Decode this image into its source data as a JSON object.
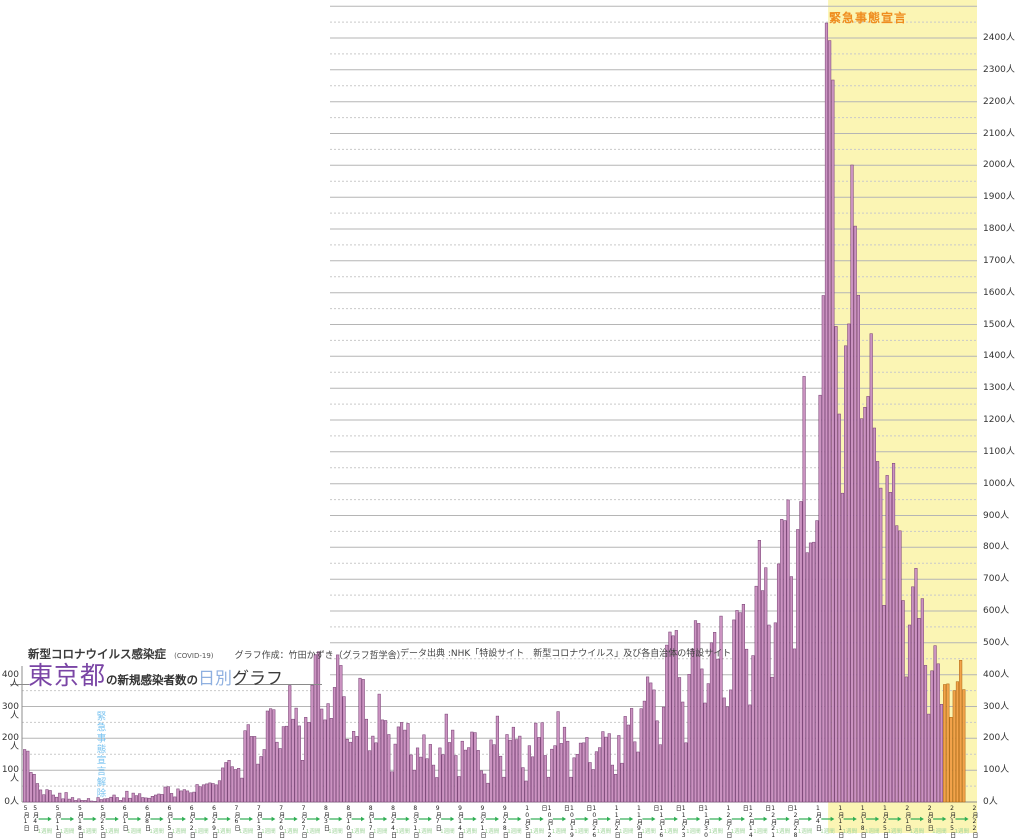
{
  "header": {
    "subtitle": "新型コロナウイルス感染症",
    "subtitle_suffix": "(COVID-19)",
    "credit": "グラフ作成：竹田かずき（グラフ哲学舎）",
    "title_main": "東京都",
    "title_mid": "の新規感染者数の",
    "title_highlight": "日別",
    "title_tail": "グラフ",
    "source": "データ出典 :NHK「特設サイト　新型コロナウイルス」及び各自治体の特設サイト"
  },
  "annotations": {
    "emergency_start": "緊急事態宣言",
    "emergency_end": "緊急事態宣言解除",
    "week_arrow": "1週間"
  },
  "colors": {
    "bar_fill": "#cb93c1",
    "bar_stroke": "#7b4477",
    "bar_recent_fill": "#f2a34b",
    "bar_recent_stroke": "#b06a15",
    "emergency_bg": "#fbf5b4",
    "emergency_text": "#ef8d1f",
    "lifted_text": "#79c3f0",
    "title_main": "#7a45a5",
    "title_highlight": "#8fb0e0",
    "arrow_green": "#2fae53",
    "week_text_green": "#a2d59d",
    "grid": "#b5b5b5",
    "grid_dashed": "#c9c9c9",
    "axis": "#8c8c8c"
  },
  "chart_data": {
    "type": "bar",
    "title": "東京都の新規感染者数の日別グラフ",
    "unit": "人",
    "start_date": "2020-05-01",
    "end_date": "2021-02-19",
    "emergency_start_date": "2021-01-08",
    "emergency_lifted_date": "2020-05-25",
    "recent_week_start_date": "2021-02-13",
    "y_axis": {
      "left_label_max": 400,
      "right_label_max": 2400,
      "label_step": 100,
      "grid_solid_step": 100,
      "grid_dashed_step": 50,
      "grid_max": 2500,
      "unit": "人"
    },
    "x_tick_labels": [
      {
        "date": "2020-05-01",
        "label": "5月1日"
      },
      {
        "date": "2020-05-04",
        "label": "5月4日"
      },
      {
        "date": "2020-05-11",
        "label": "5月11日"
      },
      {
        "date": "2020-05-18",
        "label": "5月18日"
      },
      {
        "date": "2020-05-25",
        "label": "5月25日"
      },
      {
        "date": "2020-06-01",
        "label": "6月1日"
      },
      {
        "date": "2020-06-08",
        "label": "6月8日"
      },
      {
        "date": "2020-06-15",
        "label": "6月15日"
      },
      {
        "date": "2020-06-22",
        "label": "6月22日"
      },
      {
        "date": "2020-06-29",
        "label": "6月29日"
      },
      {
        "date": "2020-07-06",
        "label": "7月6日"
      },
      {
        "date": "2020-07-13",
        "label": "7月13日"
      },
      {
        "date": "2020-07-20",
        "label": "7月20日"
      },
      {
        "date": "2020-07-27",
        "label": "7月27日"
      },
      {
        "date": "2020-08-03",
        "label": "8月3日"
      },
      {
        "date": "2020-08-10",
        "label": "8月10日"
      },
      {
        "date": "2020-08-17",
        "label": "8月17日"
      },
      {
        "date": "2020-08-24",
        "label": "8月24日"
      },
      {
        "date": "2020-08-31",
        "label": "8月31日"
      },
      {
        "date": "2020-09-07",
        "label": "9月7日"
      },
      {
        "date": "2020-09-14",
        "label": "9月14日"
      },
      {
        "date": "2020-09-21",
        "label": "9月21日"
      },
      {
        "date": "2020-09-28",
        "label": "9月28日"
      },
      {
        "date": "2020-10-05",
        "label": "10月5日"
      },
      {
        "date": "2020-10-12",
        "label": "10月12日"
      },
      {
        "date": "2020-10-19",
        "label": "10月19日"
      },
      {
        "date": "2020-10-26",
        "label": "10月26日"
      },
      {
        "date": "2020-11-02",
        "label": "11月2日"
      },
      {
        "date": "2020-11-09",
        "label": "11月9日"
      },
      {
        "date": "2020-11-16",
        "label": "11月16日"
      },
      {
        "date": "2020-11-23",
        "label": "11月23日"
      },
      {
        "date": "2020-11-30",
        "label": "11月30日"
      },
      {
        "date": "2020-12-07",
        "label": "12月7日"
      },
      {
        "date": "2020-12-14",
        "label": "12月14日"
      },
      {
        "date": "2020-12-21",
        "label": "12月21日"
      },
      {
        "date": "2020-12-28",
        "label": "12月28日"
      },
      {
        "date": "2021-01-04",
        "label": "1月4日"
      },
      {
        "date": "2021-01-11",
        "label": "1月11日"
      },
      {
        "date": "2021-01-18",
        "label": "1月18日"
      },
      {
        "date": "2021-01-25",
        "label": "1月25日"
      },
      {
        "date": "2021-02-01",
        "label": "2月1日"
      },
      {
        "date": "2021-02-08",
        "label": "2月8日"
      },
      {
        "date": "2021-02-15",
        "label": "2月15日"
      },
      {
        "date": "2021-02-22",
        "label": "2月22日"
      }
    ],
    "values_by_month": {
      "2020-05": [
        165,
        160,
        93,
        87,
        58,
        38,
        23,
        39,
        36,
        22,
        15,
        28,
        10,
        30,
        9,
        14,
        5,
        10,
        5,
        5,
        11,
        3,
        2,
        14,
        8,
        10,
        11,
        15,
        22,
        14,
        5
      ],
      "2020-06": [
        13,
        34,
        12,
        28,
        20,
        26,
        14,
        13,
        12,
        18,
        22,
        25,
        24,
        47,
        48,
        27,
        16,
        41,
        35,
        39,
        35,
        29,
        31,
        55,
        48,
        54,
        57,
        60,
        58,
        54
      ],
      "2020-07": [
        67,
        107,
        124,
        131,
        111,
        102,
        106,
        75,
        224,
        243,
        206,
        206,
        119,
        143,
        165,
        286,
        293,
        290,
        188,
        168,
        237,
        238,
        366,
        260,
        295,
        239,
        131,
        266,
        250,
        367,
        463
      ],
      "2020-08": [
        472,
        292,
        258,
        309,
        263,
        360,
        462,
        429,
        331,
        197,
        188,
        222,
        206,
        389,
        385,
        260,
        161,
        207,
        186,
        339,
        258,
        256,
        212,
        95,
        182,
        236,
        250,
        226,
        247,
        148,
        100
      ],
      "2020-09": [
        170,
        141,
        211,
        136,
        181,
        116,
        77,
        170,
        149,
        276,
        187,
        226,
        146,
        80,
        191,
        163,
        171,
        220,
        218,
        162,
        98,
        88,
        59,
        195,
        180,
        270,
        144,
        78,
        212,
        194
      ],
      "2020-10": [
        235,
        196,
        207,
        108,
        66,
        177,
        142,
        248,
        203,
        249,
        146,
        78,
        166,
        177,
        284,
        184,
        235,
        191,
        78,
        139,
        150,
        185,
        186,
        203,
        124,
        102,
        158,
        171,
        221,
        204,
        215
      ],
      "2020-11": [
        116,
        87,
        209,
        122,
        269,
        242,
        294,
        189,
        157,
        293,
        317,
        393,
        374,
        352,
        255,
        180,
        298,
        493,
        534,
        522,
        539,
        391,
        314,
        186,
        401,
        481,
        570,
        561,
        418,
        311
      ],
      "2020-12": [
        372,
        500,
        533,
        449,
        584,
        327,
        299,
        352,
        572,
        602,
        595,
        621,
        480,
        305,
        460,
        678,
        822,
        664,
        736,
        556,
        392,
        563,
        748,
        888,
        884,
        949,
        708,
        481,
        856,
        944,
        1337
      ],
      "2021-01": [
        783,
        814,
        816,
        884,
        1278,
        1591,
        2447,
        2392,
        2268,
        1494,
        1219,
        970,
        1433,
        1502,
        2001,
        1809,
        1592,
        1204,
        1240,
        1274,
        1471,
        1175,
        1070,
        986,
        618,
        1026,
        973,
        1064,
        868,
        852,
        633
      ],
      "2021-02": [
        393,
        556,
        676,
        734,
        577,
        639,
        429,
        276,
        412,
        491,
        434,
        307,
        369,
        371,
        266,
        350,
        378,
        445,
        353
      ]
    }
  }
}
